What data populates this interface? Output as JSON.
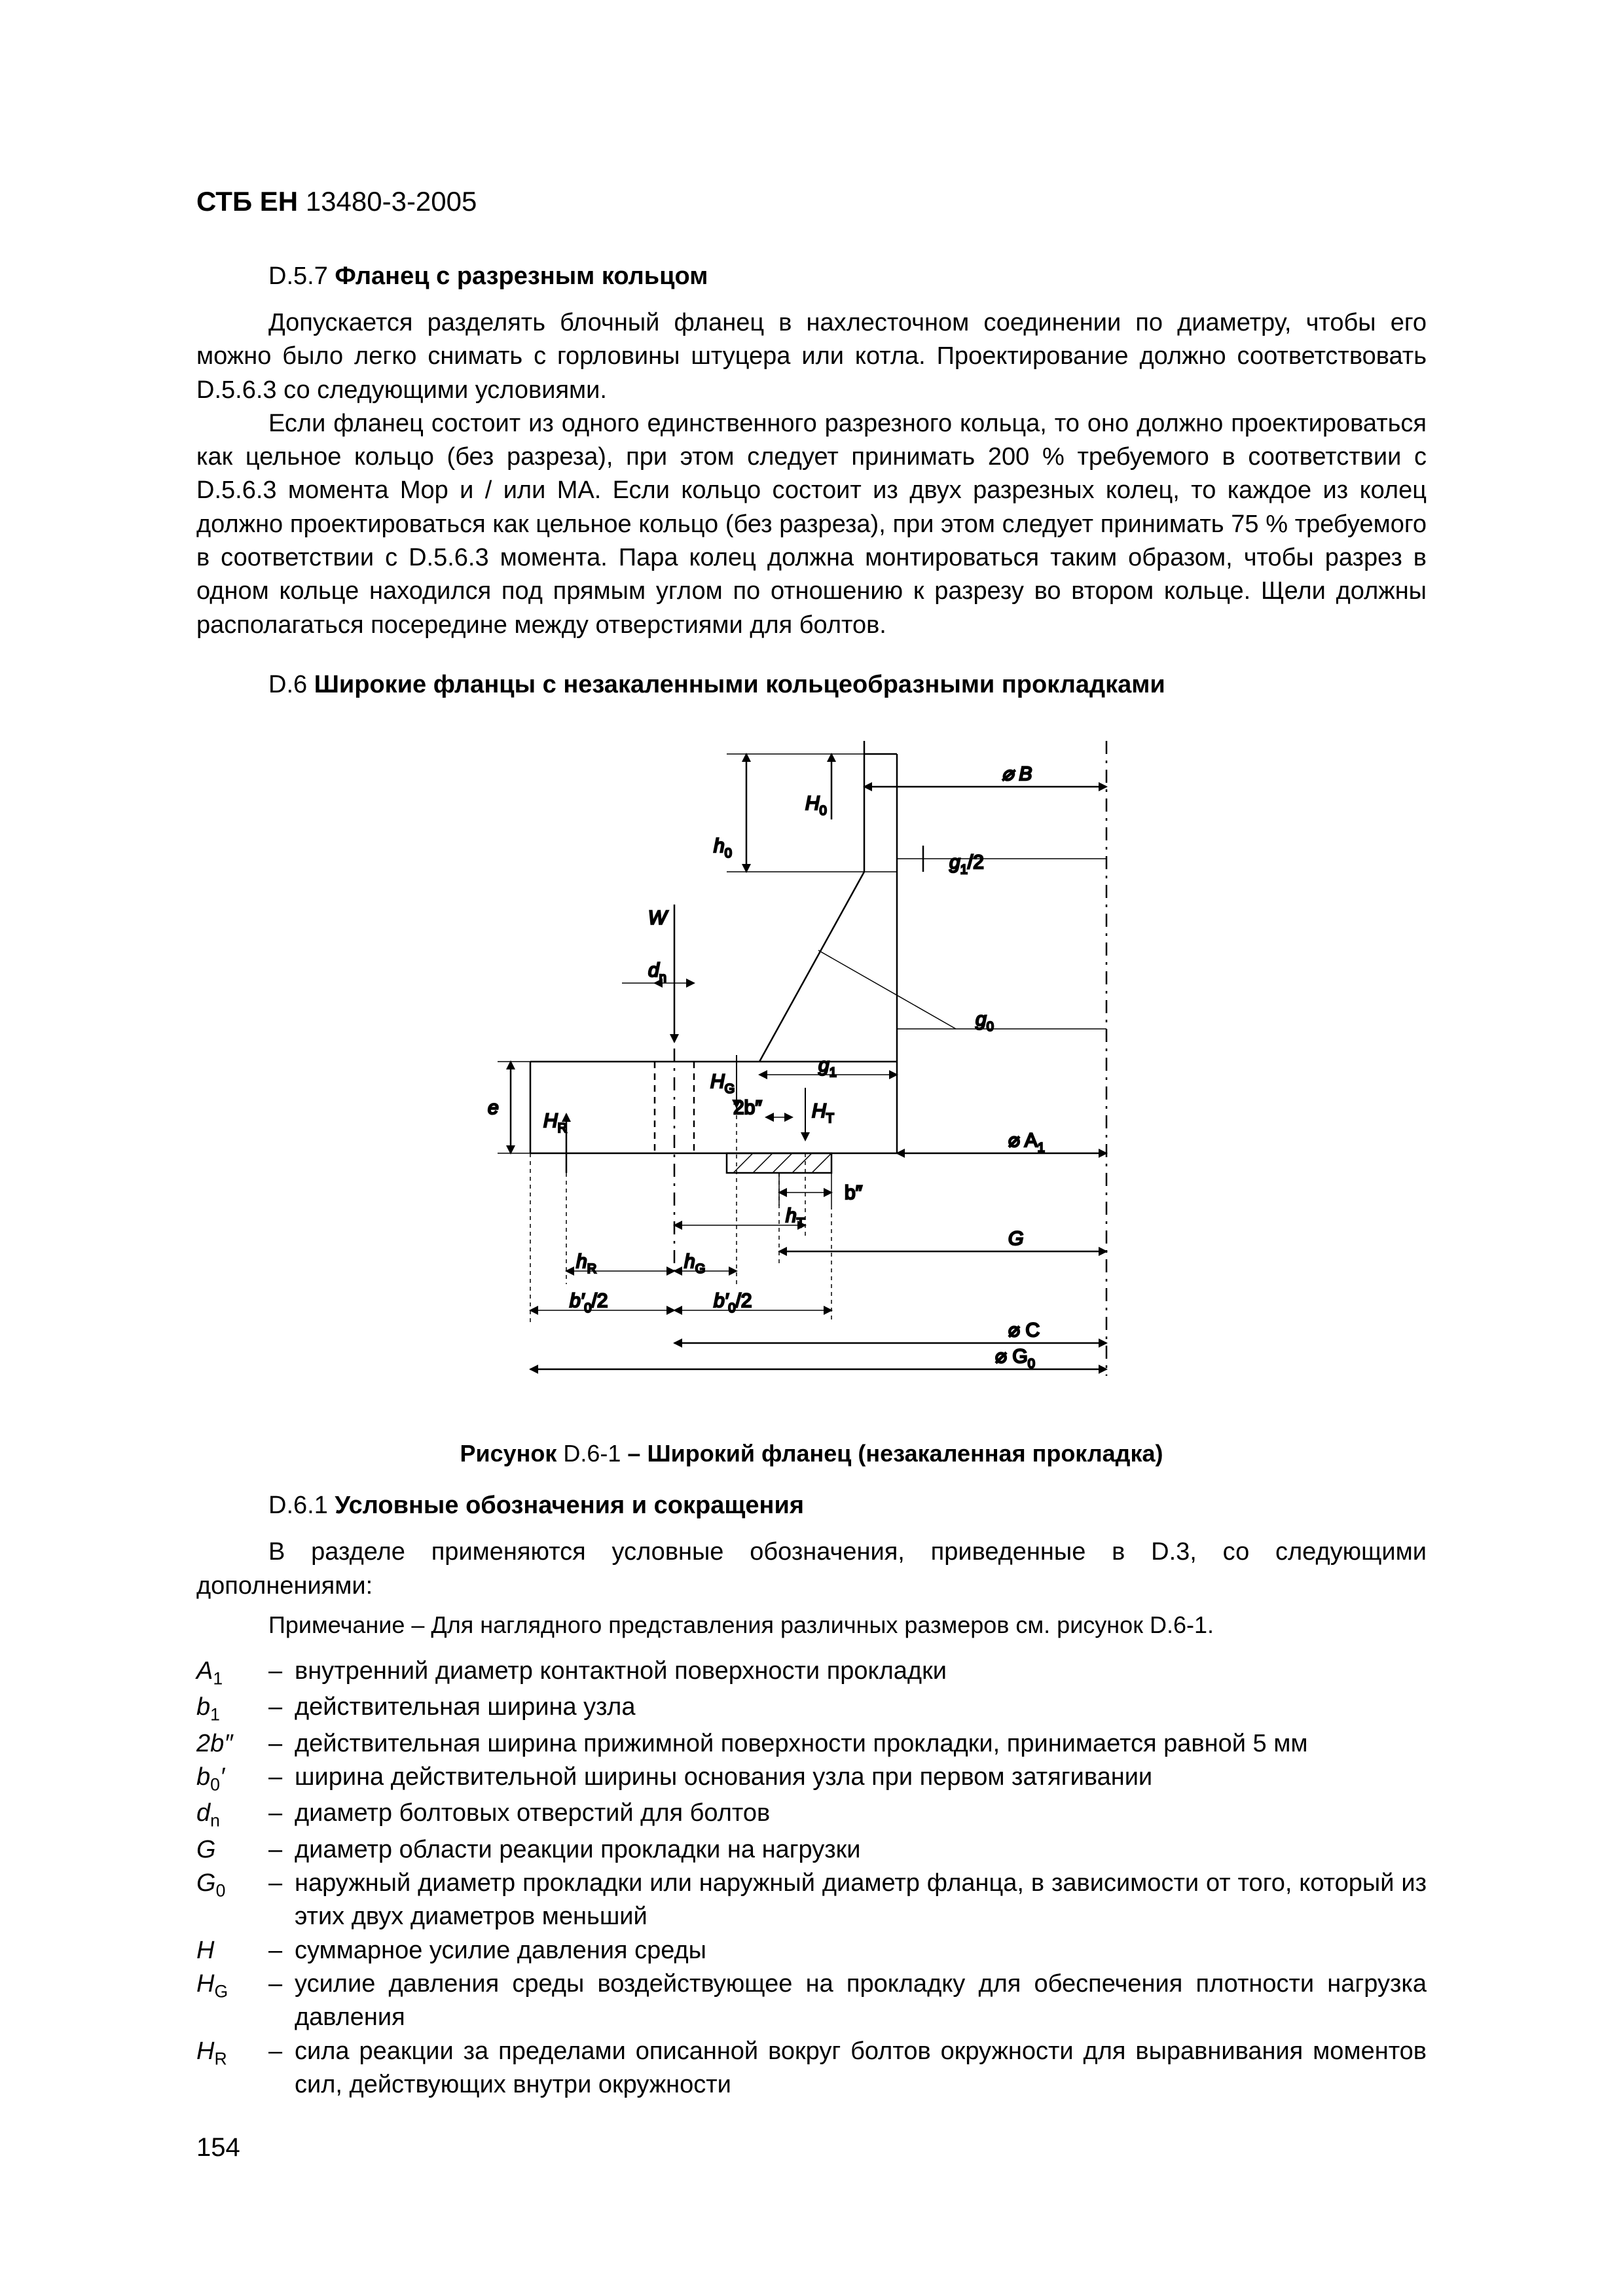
{
  "doc": {
    "header_prefix": "СТБ ЕН ",
    "header_number": "13480-3-2005",
    "page_number": "154"
  },
  "s57": {
    "num": "D.5.7 ",
    "title": "Фланец с разрезным кольцом",
    "p1": "Допускается разделять блочный фланец в нахлесточном соединении по диаметру, чтобы его можно было легко снимать с горловины штуцера или котла. Проектирование должно соответствовать D.5.6.3 со следующими условиями.",
    "p2": "Если фланец состоит из одного единственного разрезного кольца, то оно должно проектироваться как цельное кольцо (без разреза), при этом следует принимать 200 % требуемого в соответствии с D.5.6.3 момента Mop и / или MA. Если кольцо состоит из двух разрезных колец, то каждое из колец должно проектироваться как цельное кольцо (без разреза), при этом следует принимать 75 % требуемого в соответствии с D.5.6.3 момента. Пара колец должна монтироваться таким образом, чтобы разрез в одном кольце находился под прямым углом по отношению к разрезу во втором кольце. Щели должны располагаться посередине между отверстиями для болтов."
  },
  "s6": {
    "num": "D.6 ",
    "title": "Широкие фланцы с незакаленными кольцеобразными прокладками"
  },
  "figure": {
    "caption_pre": "Рисунок ",
    "caption_num": "D.6-1",
    "caption_dash": " – ",
    "caption_title": "Широкий фланец (незакаленная прокладка)",
    "labels": {
      "dB": "⌀ B",
      "H0": "H",
      "H0_sub": "0",
      "h0": "h",
      "h0_sub": "0",
      "g12": "g",
      "g12_sub": "1",
      "g12_suf": "/2",
      "W": "W",
      "dn": "d",
      "dn_sub": "n",
      "g0": "g",
      "g0_sub": "0",
      "HG": "H",
      "HG_sub": "G",
      "g1": "g",
      "g1_sub": "1",
      "e": "e",
      "HR": "H",
      "HR_sub": "R",
      "b2": "2b″",
      "HT": "H",
      "HT_sub": "T",
      "dA1": "⌀ A",
      "dA1_sub": "1",
      "bpp": "b″",
      "hT": "h",
      "hT_sub": "T",
      "G": "G",
      "hR": "h",
      "hR_sub": "R",
      "hG": "h",
      "hG_sub": "G",
      "b0L": "b′",
      "b0L_sub": "0",
      "b0L_suf": "/2",
      "b0R": "b′",
      "b0R_sub": "0",
      "b0R_suf": "/2",
      "dC": "⌀ C",
      "dG0": "⌀ G",
      "dG0_sub": "0"
    },
    "style": {
      "stroke": "#000000",
      "stroke_width": 2.5,
      "dash": "10 8",
      "arrow_size": 14
    }
  },
  "s61": {
    "num": "D.6.1 ",
    "title": "Условные обозначения и сокращения",
    "intro": "В разделе применяются условные обозначения, приведенные в D.3, со следующими дополнениями:",
    "note": "Примечание – Для наглядного представления различных размеров см. рисунок D.6-1."
  },
  "defs": [
    {
      "sym_html": "A<sub>1</sub>",
      "desc": "внутренний диаметр контактной поверхности прокладки"
    },
    {
      "sym_html": "b<sub>1</sub>",
      "desc": "действительная ширина узла"
    },
    {
      "sym_html": "2b″",
      "desc": "действительная ширина прижимной поверхности прокладки, принимается равной 5 мм"
    },
    {
      "sym_html": "b<sub>0</sub>′",
      "desc": "ширина действительной ширины основания узла при первом затягивании"
    },
    {
      "sym_html": "d<sub>n</sub>",
      "desc": "диаметр болтовых отверстий для болтов"
    },
    {
      "sym_html": "G",
      "desc": "диаметр области реакции прокладки на нагрузки"
    },
    {
      "sym_html": "G<sub>0</sub>",
      "desc": "наружный диаметр прокладки или наружный диаметр фланца, в зависимости от того, который из этих двух диаметров меньший"
    },
    {
      "sym_html": "H",
      "desc": "суммарное усилие давления среды"
    },
    {
      "sym_html": "H<sub>G</sub>",
      "desc": "усилие давления среды воздействующее на прокладку для обеспечения плотности нагрузка давления"
    },
    {
      "sym_html": "H<sub>R</sub>",
      "desc": "сила реакции за пределами описанной вокруг болтов окружности для выравнивания моментов сил, действующих внутри окружности"
    }
  ]
}
